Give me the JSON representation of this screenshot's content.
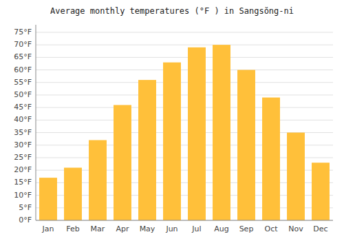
{
  "chart_data": {
    "type": "bar",
    "title": "Average monthly temperatures (°F ) in Sangsŏng-ni",
    "categories": [
      "Jan",
      "Feb",
      "Mar",
      "Apr",
      "May",
      "Jun",
      "Jul",
      "Aug",
      "Sep",
      "Oct",
      "Nov",
      "Dec"
    ],
    "values": [
      17,
      21,
      32,
      46,
      56,
      63,
      69,
      70,
      60,
      49,
      35,
      23
    ],
    "color": "#FFC03A",
    "ylim": [
      0,
      78
    ],
    "yticks": [
      {
        "value": 0,
        "label": "0°F"
      },
      {
        "value": 5,
        "label": "5°F"
      },
      {
        "value": 10,
        "label": "10°F"
      },
      {
        "value": 15,
        "label": "15°F"
      },
      {
        "value": 20,
        "label": "20°F"
      },
      {
        "value": 25,
        "label": "25°F"
      },
      {
        "value": 30,
        "label": "30°F"
      },
      {
        "value": 35,
        "label": "35°F"
      },
      {
        "value": 40,
        "label": "40°F"
      },
      {
        "value": 45,
        "label": "45°F"
      },
      {
        "value": 50,
        "label": "50°F"
      },
      {
        "value": 55,
        "label": "55°F"
      },
      {
        "value": 60,
        "label": "60°F"
      },
      {
        "value": 65,
        "label": "65°F"
      },
      {
        "value": 70,
        "label": "70°F"
      },
      {
        "value": 75,
        "label": "75°F"
      }
    ],
    "grid": true
  }
}
